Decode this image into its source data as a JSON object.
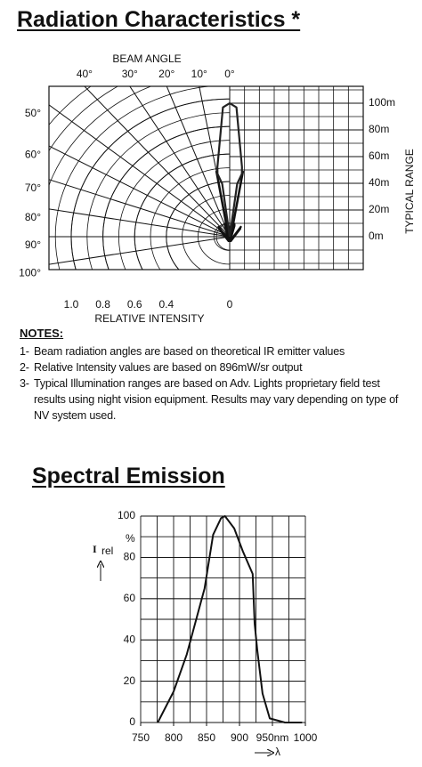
{
  "chart_data": [
    {
      "type": "polar",
      "title": "Radiation Characteristics *",
      "angle_label": "BEAM ANGLE",
      "intensity_label": "RELATIVE INTENSITY",
      "range_label": "TYPICAL RANGE",
      "angle_ticks": [
        {
          "value": 40,
          "label": "40°"
        },
        {
          "value": 30,
          "label": "30°"
        },
        {
          "value": 20,
          "label": "20°"
        },
        {
          "value": 10,
          "label": "10°"
        },
        {
          "value": 0,
          "label": "0°"
        },
        {
          "value": 50,
          "label": "50°"
        },
        {
          "value": 60,
          "label": "60°"
        },
        {
          "value": 70,
          "label": "70°"
        },
        {
          "value": 80,
          "label": "80°"
        },
        {
          "value": 90,
          "label": "90°"
        },
        {
          "value": 100,
          "label": "100°"
        }
      ],
      "intensity_ticks": [
        {
          "value": 1,
          "label": "1.0"
        },
        {
          "value": 0.8,
          "label": "0.8"
        },
        {
          "value": 0.6,
          "label": "0.6"
        },
        {
          "value": 0.4,
          "label": "0.4"
        },
        0
      ],
      "range_ticks": [
        {
          "value": 100,
          "label": "100m"
        },
        {
          "value": 80,
          "label": "80m"
        },
        {
          "value": 60,
          "label": "60m"
        },
        {
          "value": 40,
          "label": "40m"
        },
        {
          "value": 20,
          "label": "20m"
        },
        {
          "value": 0,
          "label": "0m"
        }
      ],
      "ylim": [
        -25,
        113
      ],
      "color": "#222222",
      "pattern": {
        "angle": [
          0,
          -8,
          -11,
          -10,
          -3,
          0,
          3,
          10,
          11,
          8,
          0
        ],
        "range": [
          0,
          40,
          48,
          53,
          97,
          100,
          97,
          53,
          48,
          40,
          0
        ]
      }
    },
    {
      "type": "line",
      "title": "Spectral Emission",
      "ylabel": "I",
      "ylabel_sub": "rel",
      "yunit": "%",
      "xlabel": "λ",
      "xlim": [
        750,
        1000
      ],
      "ylim": [
        0,
        100
      ],
      "xticks": [
        750,
        800,
        850,
        900,
        {
          "value": 950,
          "label": "950nm"
        },
        1000
      ],
      "yticks": [
        0,
        20,
        40,
        60,
        80,
        100
      ],
      "color": "#111111",
      "x": [
        776,
        800,
        820,
        847,
        860,
        872,
        878,
        892,
        905,
        920,
        923,
        927,
        935,
        946,
        969,
        995
      ],
      "values": [
        0,
        15,
        33,
        65,
        91,
        99,
        100,
        94,
        83,
        72,
        48,
        35,
        14,
        2,
        0,
        0
      ]
    }
  ],
  "notes": {
    "heading": "NOTES:",
    "items": [
      {
        "number": "1-",
        "text": "Beam radiation angles are based on theoretical IR emitter values"
      },
      {
        "number": "2-",
        "text": "Relative Intensity values are based on 896mW/sr output"
      },
      {
        "number": "3-",
        "text": "Typical Illumination ranges are based on Adv. Lights proprietary field test results using night vision equipment. Results may vary depending on type of NV system used."
      }
    ]
  }
}
